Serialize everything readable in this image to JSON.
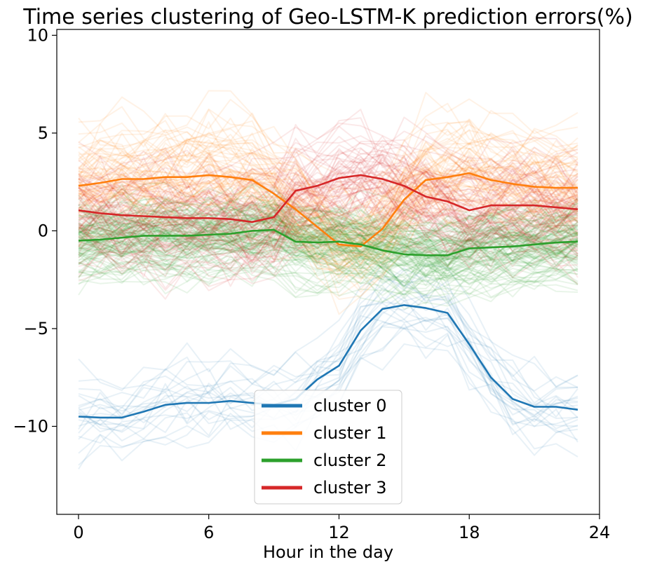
{
  "chart_data": {
    "type": "line",
    "title": "Time series clustering of Geo-LSTM-K prediction errors(%)",
    "xlabel": "Hour in the day",
    "ylabel": "",
    "xlim": [
      -1,
      24
    ],
    "ylim": [
      -14.5,
      10.3
    ],
    "xticks": [
      0,
      6,
      12,
      18,
      24
    ],
    "xtick_labels": [
      "0",
      "6",
      "12",
      "18",
      "24"
    ],
    "yticks": [
      10,
      5,
      0,
      -5,
      -10
    ],
    "ytick_labels": [
      "10",
      "5",
      "0",
      "−5",
      "−10"
    ],
    "grid": false,
    "legend_position": "lower-center",
    "x": [
      0,
      1,
      2,
      3,
      4,
      5,
      6,
      7,
      8,
      9,
      10,
      11,
      12,
      13,
      14,
      15,
      16,
      17,
      18,
      19,
      20,
      21,
      22,
      23
    ],
    "series": [
      {
        "name": "cluster 0",
        "color": "#1f77b4",
        "values": [
          -9.5,
          -9.55,
          -9.55,
          -9.25,
          -8.9,
          -8.8,
          -8.8,
          -8.7,
          -8.8,
          -8.9,
          -8.6,
          -7.6,
          -6.9,
          -5.1,
          -4.0,
          -3.8,
          -3.95,
          -4.2,
          -5.8,
          -7.5,
          -8.6,
          -9.0,
          -9.0,
          -9.15
        ],
        "background_count": 22,
        "background_spread": 1.6
      },
      {
        "name": "cluster 1",
        "color": "#ff7f0e",
        "values": [
          2.3,
          2.45,
          2.65,
          2.65,
          2.75,
          2.75,
          2.85,
          2.75,
          2.6,
          1.9,
          1.1,
          0.2,
          -0.7,
          -0.8,
          0.1,
          1.6,
          2.6,
          2.75,
          2.95,
          2.6,
          2.4,
          2.25,
          2.2,
          2.2
        ],
        "background_count": 70,
        "background_spread": 2.0
      },
      {
        "name": "cluster 2",
        "color": "#2ca02c",
        "values": [
          -0.5,
          -0.45,
          -0.35,
          -0.25,
          -0.25,
          -0.25,
          -0.2,
          -0.15,
          0.0,
          0.05,
          -0.55,
          -0.6,
          -0.55,
          -0.7,
          -1.0,
          -1.2,
          -1.25,
          -1.25,
          -0.9,
          -0.85,
          -0.8,
          -0.7,
          -0.6,
          -0.55
        ],
        "background_count": 110,
        "background_spread": 1.5
      },
      {
        "name": "cluster 3",
        "color": "#d62728",
        "values": [
          1.05,
          0.9,
          0.8,
          0.75,
          0.7,
          0.65,
          0.65,
          0.6,
          0.45,
          0.7,
          2.05,
          2.3,
          2.7,
          2.85,
          2.65,
          2.3,
          1.75,
          1.5,
          1.05,
          1.3,
          1.3,
          1.3,
          1.2,
          1.1
        ],
        "background_count": 70,
        "background_spread": 2.2
      }
    ]
  }
}
